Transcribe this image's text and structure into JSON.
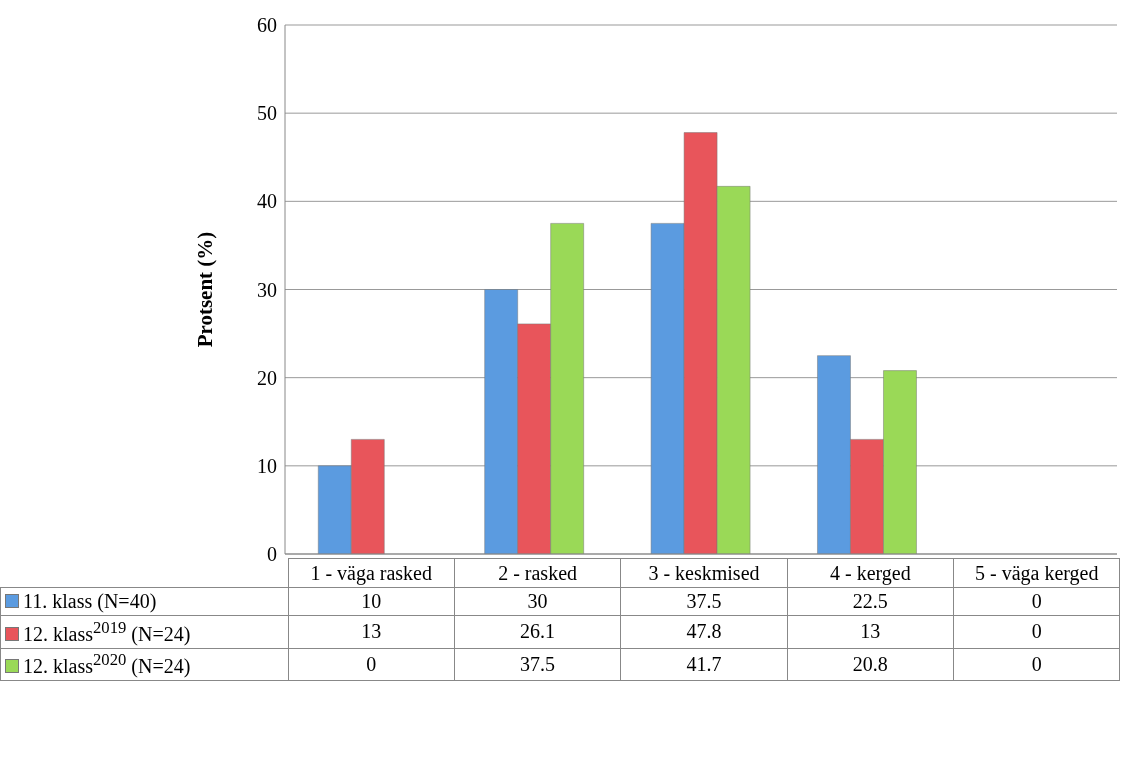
{
  "chart_data": {
    "type": "bar",
    "ylabel": "Protsent (%)",
    "categories": [
      "1 - väga rasked",
      "2 - rasked",
      "3 - keskmised",
      "4 - kerged",
      "5 - väga kerged"
    ],
    "series": [
      {
        "name": "11. klass (N=40)",
        "color": "#5b9be0",
        "values": [
          10,
          30,
          37.5,
          22.5,
          0
        ]
      },
      {
        "name": "12. klass$^{2019}$ (N=24)",
        "color": "#e8555b",
        "values": [
          13,
          26.1,
          47.8,
          13,
          0
        ]
      },
      {
        "name": "12. klass$^{2020}$ (N=24)",
        "color": "#9ad957",
        "values": [
          0,
          37.5,
          41.7,
          20.8,
          0
        ]
      }
    ],
    "ylim": [
      0,
      60
    ],
    "yticks": [
      0,
      10,
      20,
      30,
      40,
      50,
      60
    ],
    "grid": "y",
    "legend": "bottom",
    "data_labels": true
  }
}
